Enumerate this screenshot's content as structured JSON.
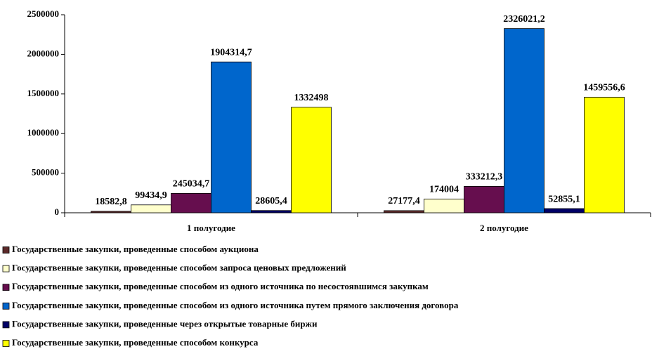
{
  "chart_data": {
    "type": "bar",
    "categories": [
      "1 полугодие",
      "2 полугодие"
    ],
    "series": [
      {
        "name": "Государственные закупки, проведенные способом аукциона",
        "color": "#5c2a2a",
        "values": [
          18582.8,
          27177.4
        ],
        "value_labels": [
          "18582,8",
          "27177,4"
        ]
      },
      {
        "name": "Государственные закупки, проведенные способом запроса ценовых предложений",
        "color": "#ffffcc",
        "values": [
          99434.9,
          174004
        ],
        "value_labels": [
          "99434,9",
          "174004"
        ]
      },
      {
        "name": "Государственные закупки, проведенные способом из одного источника по несостоявшимся закупкам",
        "color": "#660e4e",
        "values": [
          245034.7,
          333212.3
        ],
        "value_labels": [
          "245034,7",
          "333212,3"
        ]
      },
      {
        "name": "Государственные закупки, проведенные способом из одного источника путем прямого заключения договора",
        "color": "#0066cc",
        "values": [
          1904314.7,
          2326021.2
        ],
        "value_labels": [
          "1904314,7",
          "2326021,2"
        ]
      },
      {
        "name": "Государственные закупки, проведенные через открытые товарные биржи",
        "color": "#000066",
        "values": [
          28605.4,
          52855.1
        ],
        "value_labels": [
          "28605,4",
          "52855,1"
        ]
      },
      {
        "name": "Государственные закупки, проведенные способом конкурса",
        "color": "#ffff00",
        "values": [
          1332498,
          1459556.6
        ],
        "value_labels": [
          "1332498",
          "1459556,6"
        ]
      }
    ],
    "ylim": [
      0,
      2500000
    ],
    "yticks": [
      0,
      500000,
      1000000,
      1500000,
      2000000,
      2500000
    ],
    "grid": false,
    "legend": "bottom"
  }
}
